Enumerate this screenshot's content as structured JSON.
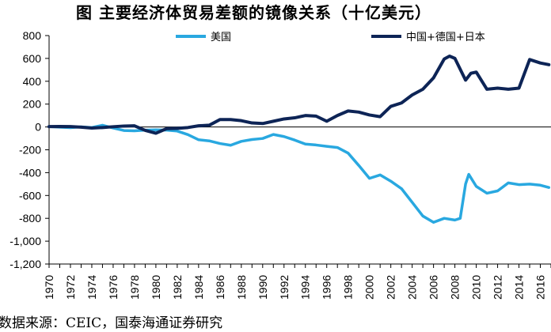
{
  "title": "图 主要经济体贸易差额的镜像关系（十亿美元）",
  "source": "数据来源：CEIC，国泰海通证券研究",
  "chart_data": {
    "type": "line",
    "title": "图 主要经济体贸易差额的镜像关系（十亿美元）",
    "xlabel": "",
    "ylabel": "",
    "ylim": [
      -1200,
      800
    ],
    "yticks": [
      800,
      600,
      400,
      200,
      0,
      -200,
      -400,
      -600,
      -800,
      -1000,
      -1200
    ],
    "ytick_labels": [
      "800",
      "600",
      "400",
      "200",
      "0",
      "-200",
      "-400",
      "-600",
      "-800",
      "-1,000",
      "-1,200"
    ],
    "xticks": [
      1970,
      1972,
      1974,
      1976,
      1978,
      1980,
      1982,
      1984,
      1986,
      1988,
      1990,
      1992,
      1994,
      1996,
      1998,
      2000,
      2002,
      2004,
      2006,
      2008,
      2010,
      2012,
      2014,
      2016
    ],
    "grid": false,
    "legend_position": "top",
    "series": [
      {
        "name": "美国",
        "color": "#29A8E0",
        "points": [
          [
            1970,
            3
          ],
          [
            1971,
            -2
          ],
          [
            1972,
            -6
          ],
          [
            1973,
            1
          ],
          [
            1974,
            -5
          ],
          [
            1975,
            15
          ],
          [
            1976,
            -9
          ],
          [
            1977,
            -31
          ],
          [
            1978,
            -34
          ],
          [
            1979,
            -28
          ],
          [
            1980,
            -25
          ],
          [
            1981,
            -28
          ],
          [
            1982,
            -36
          ],
          [
            1983,
            -67
          ],
          [
            1984,
            -112
          ],
          [
            1985,
            -122
          ],
          [
            1986,
            -145
          ],
          [
            1987,
            -160
          ],
          [
            1988,
            -126
          ],
          [
            1989,
            -110
          ],
          [
            1990,
            -101
          ],
          [
            1991,
            -66
          ],
          [
            1992,
            -84
          ],
          [
            1993,
            -115
          ],
          [
            1994,
            -150
          ],
          [
            1995,
            -158
          ],
          [
            1996,
            -170
          ],
          [
            1997,
            -180
          ],
          [
            1998,
            -229
          ],
          [
            1999,
            -337
          ],
          [
            2000,
            -450
          ],
          [
            2001,
            -420
          ],
          [
            2002,
            -475
          ],
          [
            2003,
            -540
          ],
          [
            2004,
            -660
          ],
          [
            2005,
            -780
          ],
          [
            2006,
            -835
          ],
          [
            2007,
            -800
          ],
          [
            2008,
            -815
          ],
          [
            2008.5,
            -800
          ],
          [
            2009,
            -500
          ],
          [
            2009.3,
            -415
          ],
          [
            2010,
            -520
          ],
          [
            2011,
            -580
          ],
          [
            2012,
            -560
          ],
          [
            2013,
            -490
          ],
          [
            2014,
            -505
          ],
          [
            2015,
            -500
          ],
          [
            2016,
            -510
          ],
          [
            2016.8,
            -530
          ]
        ]
      },
      {
        "name": "中国+德国+日本",
        "color": "#0D2456",
        "points": [
          [
            1970,
            3
          ],
          [
            1971,
            4
          ],
          [
            1972,
            3
          ],
          [
            1973,
            -2
          ],
          [
            1974,
            -10
          ],
          [
            1975,
            -5
          ],
          [
            1976,
            2
          ],
          [
            1977,
            8
          ],
          [
            1978,
            10
          ],
          [
            1979,
            -30
          ],
          [
            1980,
            -55
          ],
          [
            1981,
            -15
          ],
          [
            1982,
            -12
          ],
          [
            1983,
            -5
          ],
          [
            1984,
            10
          ],
          [
            1985,
            15
          ],
          [
            1986,
            65
          ],
          [
            1987,
            65
          ],
          [
            1988,
            55
          ],
          [
            1989,
            35
          ],
          [
            1990,
            30
          ],
          [
            1991,
            50
          ],
          [
            1992,
            70
          ],
          [
            1993,
            80
          ],
          [
            1994,
            100
          ],
          [
            1995,
            95
          ],
          [
            1996,
            50
          ],
          [
            1997,
            100
          ],
          [
            1998,
            140
          ],
          [
            1999,
            130
          ],
          [
            2000,
            105
          ],
          [
            2001,
            90
          ],
          [
            2002,
            180
          ],
          [
            2003,
            210
          ],
          [
            2004,
            280
          ],
          [
            2005,
            330
          ],
          [
            2006,
            430
          ],
          [
            2007,
            595
          ],
          [
            2007.5,
            620
          ],
          [
            2008,
            600
          ],
          [
            2009,
            410
          ],
          [
            2009.5,
            470
          ],
          [
            2010,
            480
          ],
          [
            2011,
            330
          ],
          [
            2012,
            340
          ],
          [
            2013,
            330
          ],
          [
            2014,
            340
          ],
          [
            2015,
            590
          ],
          [
            2016,
            560
          ],
          [
            2016.8,
            545
          ]
        ]
      }
    ]
  }
}
